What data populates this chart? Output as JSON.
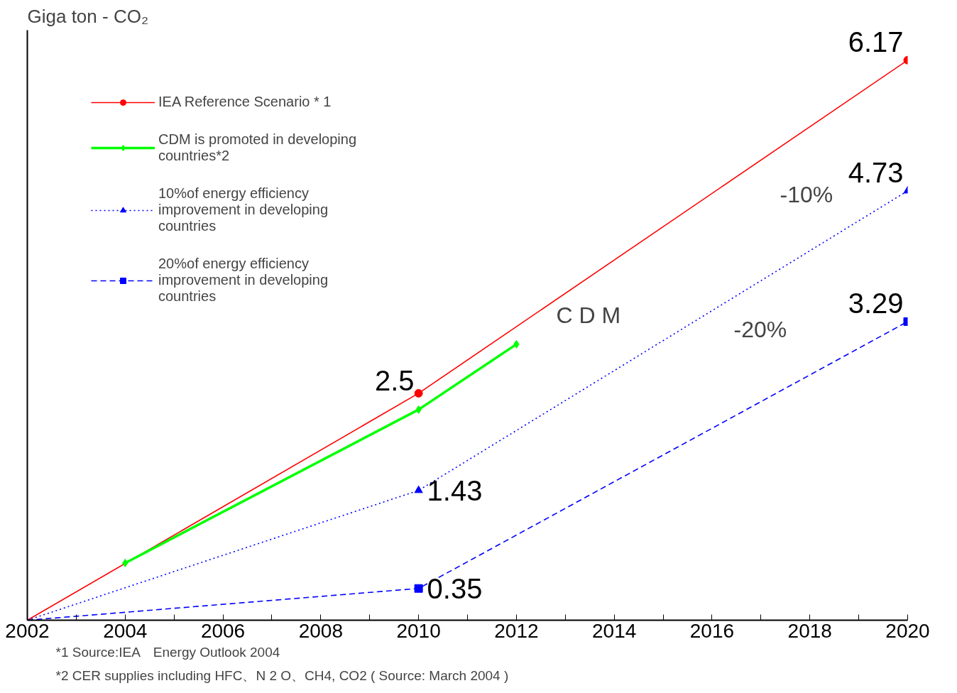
{
  "chart_data": {
    "type": "line",
    "ylabel": "Giga ton - CO₂",
    "xlim": [
      2002,
      2020
    ],
    "ylim": [
      0,
      6.5
    ],
    "xticks": [
      2002,
      {
        "value": 2003,
        "label": null
      },
      2004,
      {
        "value": 2005,
        "label": null
      },
      2006,
      {
        "value": 2007,
        "label": null
      },
      2008,
      {
        "value": 2009,
        "label": null
      },
      2010,
      {
        "value": 2011,
        "label": null
      },
      2012,
      {
        "value": 2013,
        "label": null
      },
      2014,
      {
        "value": 2015,
        "label": null
      },
      2016,
      {
        "value": 2017,
        "label": null
      },
      2018,
      {
        "value": 2019,
        "label": null
      },
      2020
    ],
    "tick_labels": "x",
    "grid": false,
    "legend": "top left",
    "series": [
      {
        "name": "IEA Reference Scenario * 1",
        "color": "#ff0000",
        "marker": "circle",
        "line_style": "solid",
        "x": [
          2002,
          2010,
          2020
        ],
        "values": [
          0,
          2.5,
          6.17
        ],
        "value_labels": [
          null,
          "2.5",
          "6.17"
        ]
      },
      {
        "name": "CDM is promoted in developing countries*2",
        "color": "#00ff00",
        "marker": "diamond",
        "line_style": "solid",
        "x": [
          2004,
          2010,
          2012
        ],
        "values": [
          0.63,
          2.32,
          3.04
        ]
      },
      {
        "name": "10%of energy efficiency improvement in developing countries",
        "color": "#0000ff",
        "marker": "triangle",
        "line_style": "dotted",
        "x": [
          2002,
          2010,
          2020
        ],
        "values": [
          0,
          1.43,
          4.73
        ],
        "value_labels": [
          null,
          "1.43",
          "4.73"
        ]
      },
      {
        "name": "20%of energy efficiency improvement in developing countries",
        "color": "#0000ff",
        "marker": "square",
        "line_style": "dashed",
        "x": [
          2002,
          2010,
          2020
        ],
        "values": [
          0,
          0.35,
          3.29
        ],
        "value_labels": [
          null,
          "0.35",
          "3.29"
        ]
      }
    ],
    "annotations": [
      "C D M",
      "-10%",
      "-20%",
      "*1 Source:IEA　Energy Outlook 2004",
      "*2  CER supplies including HFC、N 2 O、CH4, CO2 ( Source: March 2004 )"
    ]
  }
}
